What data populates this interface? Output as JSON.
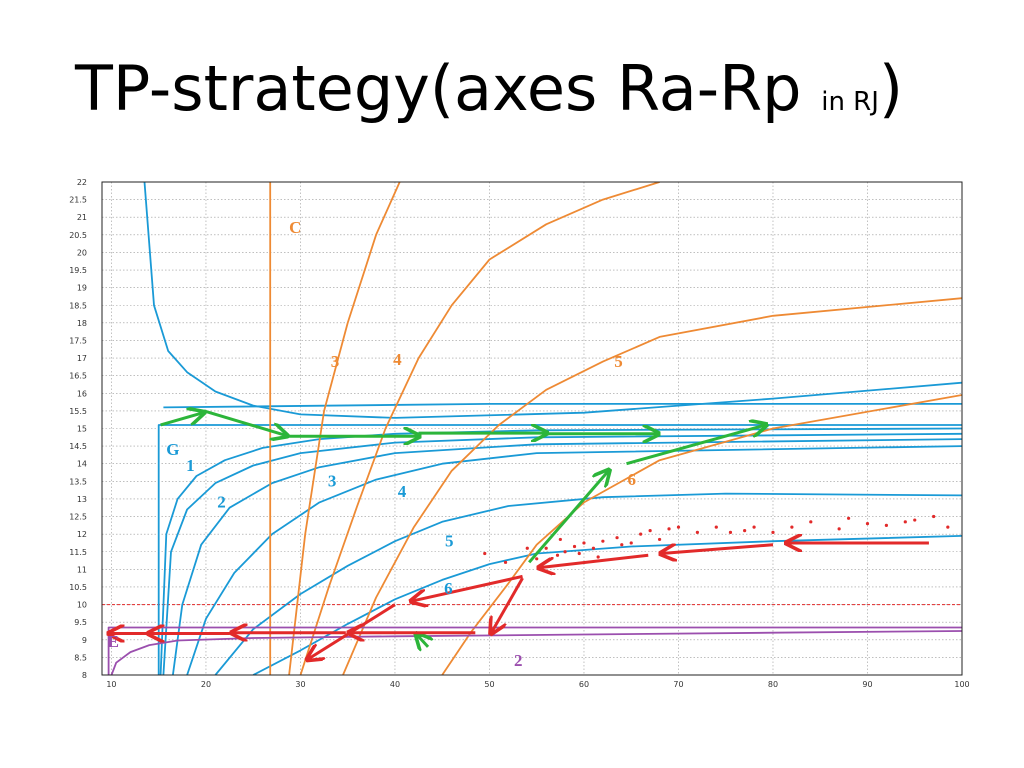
{
  "slide": {
    "title_main": "TP-strategy(axes Ra-Rp ",
    "title_small": "in RJ",
    "title_close": ")"
  },
  "colors": {
    "blue": "#1a9ad6",
    "orange": "#ee8a34",
    "purple": "#9b4fae",
    "green": "#2cb53a",
    "red": "#e22a2a",
    "grid": "#999999"
  },
  "chart_data": {
    "type": "line",
    "xlim": [
      9,
      100
    ],
    "ylim": [
      8,
      22
    ],
    "x_ticks": [
      10,
      20,
      30,
      40,
      50,
      60,
      70,
      80,
      90,
      100
    ],
    "y_ticks": [
      8,
      8.5,
      9,
      9.5,
      10,
      10.5,
      11,
      11.5,
      12,
      12.5,
      13,
      13.5,
      14,
      14.5,
      15,
      15.5,
      16,
      16.5,
      17,
      17.5,
      18,
      18.5,
      19,
      19.5,
      20,
      20.5,
      21,
      21.5,
      22
    ],
    "grid": true,
    "labels": [
      {
        "text": "C",
        "x": 28.8,
        "y": 20.55,
        "color": "orange"
      },
      {
        "text": "3",
        "x": 33.2,
        "y": 16.75,
        "color": "orange"
      },
      {
        "text": "4",
        "x": 39.8,
        "y": 16.8,
        "color": "orange"
      },
      {
        "text": "5",
        "x": 63.2,
        "y": 16.75,
        "color": "orange"
      },
      {
        "text": "6",
        "x": 64.6,
        "y": 13.4,
        "color": "orange"
      },
      {
        "text": "G",
        "x": 15.8,
        "y": 14.25,
        "color": "blue"
      },
      {
        "text": "1",
        "x": 17.9,
        "y": 13.8,
        "color": "blue"
      },
      {
        "text": "2",
        "x": 21.2,
        "y": 12.75,
        "color": "blue"
      },
      {
        "text": "3",
        "x": 32.9,
        "y": 13.35,
        "color": "blue"
      },
      {
        "text": "4",
        "x": 40.3,
        "y": 13.05,
        "color": "blue"
      },
      {
        "text": "5",
        "x": 45.3,
        "y": 11.65,
        "color": "blue"
      },
      {
        "text": "6",
        "x": 45.2,
        "y": 10.3,
        "color": "blue"
      },
      {
        "text": "E",
        "x": 9.6,
        "y": 8.8,
        "color": "purple"
      },
      {
        "text": "2",
        "x": 52.6,
        "y": 8.25,
        "color": "purple"
      }
    ],
    "series": [
      {
        "color": "blue",
        "points": [
          [
            13.5,
            22
          ],
          [
            14.5,
            18.5
          ],
          [
            16,
            17.2
          ],
          [
            18,
            16.6
          ],
          [
            21,
            16.05
          ],
          [
            25,
            15.65
          ],
          [
            30,
            15.4
          ],
          [
            40,
            15.3
          ],
          [
            60,
            15.45
          ],
          [
            80,
            15.85
          ],
          [
            100,
            16.3
          ]
        ]
      },
      {
        "color": "blue",
        "points": [
          [
            15,
            8
          ],
          [
            15,
            15.1
          ],
          [
            100,
            15.1
          ]
        ]
      },
      {
        "color": "blue",
        "points": [
          [
            15.2,
            8
          ],
          [
            15.8,
            12
          ],
          [
            17,
            13
          ],
          [
            19,
            13.65
          ],
          [
            22,
            14.1
          ],
          [
            26,
            14.45
          ],
          [
            32,
            14.7
          ],
          [
            40,
            14.85
          ],
          [
            55,
            14.95
          ],
          [
            100,
            15
          ]
        ]
      },
      {
        "color": "blue",
        "points": [
          [
            15.5,
            8
          ],
          [
            16.3,
            11.5
          ],
          [
            18,
            12.7
          ],
          [
            21,
            13.45
          ],
          [
            25,
            13.95
          ],
          [
            30,
            14.3
          ],
          [
            40,
            14.6
          ],
          [
            55,
            14.75
          ],
          [
            100,
            14.85
          ]
        ]
      },
      {
        "color": "blue",
        "points": [
          [
            16.5,
            8
          ],
          [
            17.5,
            10
          ],
          [
            19.5,
            11.7
          ],
          [
            22.5,
            12.75
          ],
          [
            27,
            13.45
          ],
          [
            32,
            13.9
          ],
          [
            40,
            14.3
          ],
          [
            55,
            14.55
          ],
          [
            100,
            14.7
          ]
        ]
      },
      {
        "color": "blue",
        "points": [
          [
            18,
            8
          ],
          [
            20,
            9.6
          ],
          [
            23,
            10.9
          ],
          [
            27,
            12
          ],
          [
            32,
            12.9
          ],
          [
            38,
            13.55
          ],
          [
            45,
            14
          ],
          [
            55,
            14.3
          ],
          [
            100,
            14.5
          ]
        ]
      },
      {
        "color": "blue",
        "points": [
          [
            21,
            8
          ],
          [
            25,
            9.3
          ],
          [
            30,
            10.3
          ],
          [
            35,
            11.1
          ],
          [
            40,
            11.8
          ],
          [
            45,
            12.35
          ],
          [
            52,
            12.8
          ],
          [
            62,
            13.05
          ],
          [
            75,
            13.15
          ],
          [
            100,
            13.1
          ]
        ]
      },
      {
        "color": "blue",
        "points": [
          [
            25,
            8
          ],
          [
            30,
            8.7
          ],
          [
            35,
            9.45
          ],
          [
            40,
            10.15
          ],
          [
            45,
            10.7
          ],
          [
            50,
            11.15
          ],
          [
            55,
            11.45
          ],
          [
            65,
            11.65
          ],
          [
            80,
            11.8
          ],
          [
            100,
            11.95
          ]
        ]
      },
      {
        "color": "blue",
        "points": [
          [
            15.5,
            15.6
          ],
          [
            50,
            15.7
          ],
          [
            100,
            15.7
          ]
        ]
      },
      {
        "color": "orange",
        "points": [
          [
            26.8,
            8
          ],
          [
            26.8,
            22
          ]
        ]
      },
      {
        "color": "orange",
        "points": [
          [
            28.8,
            8
          ],
          [
            30.5,
            12
          ],
          [
            32.5,
            15.5
          ],
          [
            35,
            18
          ],
          [
            38,
            20.5
          ],
          [
            40.5,
            22
          ]
        ]
      },
      {
        "color": "orange",
        "points": [
          [
            30,
            8
          ],
          [
            33,
            10.5
          ],
          [
            36,
            12.8
          ],
          [
            39,
            15
          ],
          [
            42.5,
            17
          ],
          [
            46,
            18.5
          ],
          [
            50,
            19.8
          ],
          [
            56,
            20.8
          ],
          [
            62,
            21.5
          ],
          [
            68,
            22
          ]
        ]
      },
      {
        "color": "orange",
        "points": [
          [
            34.5,
            8
          ],
          [
            38,
            10.2
          ],
          [
            42,
            12.2
          ],
          [
            46,
            13.8
          ],
          [
            51,
            15.1
          ],
          [
            56,
            16.1
          ],
          [
            62,
            16.9
          ],
          [
            68,
            17.6
          ],
          [
            80,
            18.2
          ],
          [
            100,
            18.7
          ]
        ]
      },
      {
        "color": "orange",
        "points": [
          [
            45,
            8
          ],
          [
            48,
            9.2
          ],
          [
            52,
            10.6
          ],
          [
            55,
            11.7
          ],
          [
            60,
            12.9
          ],
          [
            68,
            14.1
          ],
          [
            80,
            15
          ],
          [
            100,
            15.95
          ]
        ]
      },
      {
        "color": "purple",
        "points": [
          [
            9.7,
            8
          ],
          [
            9.7,
            9.35
          ],
          [
            100,
            9.35
          ]
        ]
      },
      {
        "color": "purple",
        "points": [
          [
            10,
            8
          ],
          [
            10.5,
            8.35
          ],
          [
            12,
            8.65
          ],
          [
            14,
            8.85
          ],
          [
            17,
            8.98
          ],
          [
            25,
            9.05
          ],
          [
            40,
            9.1
          ],
          [
            60,
            9.15
          ],
          [
            80,
            9.2
          ],
          [
            100,
            9.25
          ]
        ]
      }
    ],
    "red_dashed_line": {
      "y": 10
    },
    "green_arrows": [
      [
        [
          54.2,
          11.2
        ],
        [
          62.6,
          13.8
        ]
      ],
      [
        [
          64.5,
          14.0
        ],
        [
          79.2,
          15.1
        ]
      ],
      [
        [
          56.0,
          14.85
        ],
        [
          67.8,
          14.85
        ]
      ],
      [
        [
          42.5,
          14.87
        ],
        [
          56.0,
          14.87
        ]
      ],
      [
        [
          28.6,
          14.78
        ],
        [
          42.5,
          14.78
        ]
      ],
      [
        [
          19.8,
          15.5
        ],
        [
          28.5,
          14.8
        ]
      ],
      [
        [
          15.2,
          15.1
        ],
        [
          19.7,
          15.45
        ]
      ],
      [
        [
          43.5,
          8.8
        ],
        [
          42.3,
          9.15
        ]
      ]
    ],
    "red_arrows": [
      [
        [
          96.5,
          11.75
        ],
        [
          81.5,
          11.75
        ]
      ],
      [
        [
          80.0,
          11.7
        ],
        [
          68.2,
          11.45
        ]
      ],
      [
        [
          66.8,
          11.4
        ],
        [
          55.3,
          11.05
        ]
      ],
      [
        [
          53.5,
          10.8
        ],
        [
          41.8,
          10.1
        ]
      ],
      [
        [
          40.0,
          10.0
        ],
        [
          30.8,
          8.45
        ]
      ],
      [
        [
          53.5,
          10.75
        ],
        [
          50.2,
          9.2
        ]
      ],
      [
        [
          48.5,
          9.2
        ],
        [
          35.2,
          9.2
        ]
      ],
      [
        [
          34.8,
          9.2
        ],
        [
          22.8,
          9.2
        ]
      ],
      [
        [
          22.5,
          9.18
        ],
        [
          14.0,
          9.18
        ]
      ],
      [
        [
          14.0,
          9.18
        ],
        [
          9.8,
          9.18
        ]
      ]
    ],
    "red_points": [
      [
        49.5,
        11.45
      ],
      [
        51.7,
        11.2
      ],
      [
        54,
        11.6
      ],
      [
        55,
        11.3
      ],
      [
        56,
        11.6
      ],
      [
        57.5,
        11.85
      ],
      [
        58,
        11.5
      ],
      [
        59,
        11.65
      ],
      [
        60,
        11.75
      ],
      [
        61,
        11.6
      ],
      [
        62,
        11.8
      ],
      [
        63.5,
        11.9
      ],
      [
        64,
        11.7
      ],
      [
        65,
        11.75
      ],
      [
        66,
        12
      ],
      [
        67,
        12.1
      ],
      [
        68,
        11.85
      ],
      [
        69,
        12.15
      ],
      [
        70,
        12.2
      ],
      [
        72,
        12.05
      ],
      [
        74,
        12.2
      ],
      [
        75.5,
        12.05
      ],
      [
        77,
        12.1
      ],
      [
        78,
        12.2
      ],
      [
        80,
        12.05
      ],
      [
        82,
        12.2
      ],
      [
        84,
        12.35
      ],
      [
        87,
        12.15
      ],
      [
        88,
        12.45
      ],
      [
        90,
        12.3
      ],
      [
        92,
        12.25
      ],
      [
        94,
        12.35
      ],
      [
        95,
        12.4
      ],
      [
        97,
        12.5
      ],
      [
        98.5,
        12.2
      ],
      [
        57.2,
        11.4
      ],
      [
        59.5,
        11.45
      ],
      [
        61.5,
        11.35
      ]
    ]
  }
}
